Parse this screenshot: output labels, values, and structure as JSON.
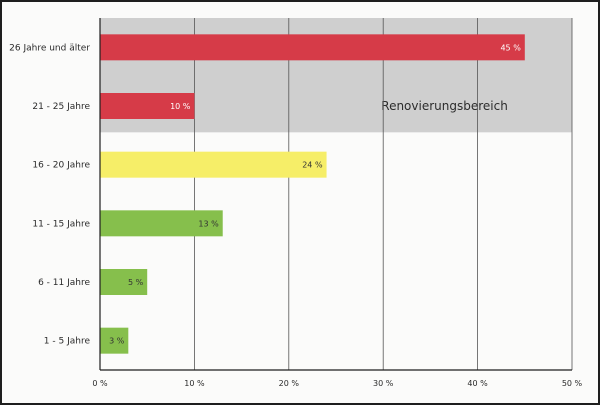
{
  "chart_data": {
    "type": "bar",
    "orientation": "horizontal",
    "categories": [
      "26 Jahre und älter",
      "21 - 25 Jahre",
      "16 - 20 Jahre",
      "11 - 15 Jahre",
      "6 - 11 Jahre",
      "1 - 5 Jahre"
    ],
    "values": [
      45,
      10,
      24,
      13,
      5,
      3
    ],
    "value_labels": [
      "45 %",
      "10 %",
      "24 %",
      "13 %",
      "5 %",
      "3 %"
    ],
    "bar_colors": [
      "#d63b48",
      "#d63b48",
      "#f6ee68",
      "#86bf4c",
      "#86bf4c",
      "#86bf4c"
    ],
    "value_label_colors": [
      "#ffffff",
      "#ffffff",
      "#333333",
      "#333333",
      "#333333",
      "#333333"
    ],
    "xlim": [
      0,
      50
    ],
    "xticks": [
      0,
      10,
      20,
      30,
      40,
      50
    ],
    "xtick_labels": [
      "0 %",
      "10 %",
      "20 %",
      "30 %",
      "40 %",
      "50 %"
    ],
    "grid": true,
    "shaded_region": {
      "label": "Renovierungsbereich",
      "categories": [
        "26 Jahre und älter",
        "21 - 25 Jahre"
      ],
      "color": "#cfcfcf"
    },
    "title": "",
    "xlabel": "",
    "ylabel": ""
  }
}
